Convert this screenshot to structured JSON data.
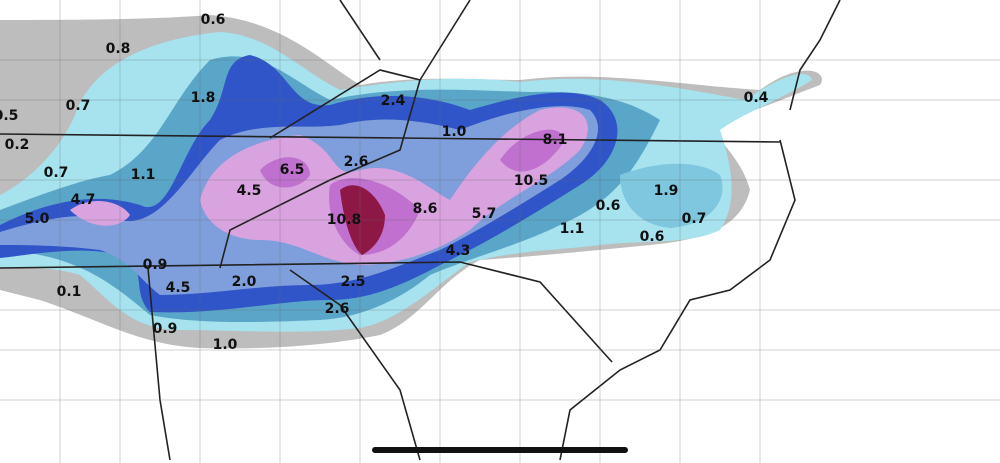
{
  "map": {
    "colors": {
      "trace_gray": "#b5b5b5",
      "dark_gray": "#8f8f8f",
      "light_cyan": "#a6e3ee",
      "teal_blue": "#5aa6c9",
      "light_blue": "#7f9fdc",
      "blue": "#2f55c8",
      "light_pink": "#d9a3df",
      "pink": "#c070cf",
      "magenta": "#a0409f",
      "maroon": "#8e1845",
      "borders": "#222222",
      "county_lines": "#555555"
    },
    "amount_labels": [
      "0.6",
      "0.8",
      "0.5",
      "0.7",
      "1.8",
      "2.4",
      "0.2",
      "1.0",
      "8.1",
      "0.7",
      "1.1",
      "6.5",
      "2.6",
      "4.5",
      "4.7",
      "5.0",
      "10.8",
      "8.6",
      "5.7",
      "10.5",
      "1.9",
      "0.6",
      "0.7",
      "1.1",
      "0.6",
      "0.9",
      "4.3",
      "0.1",
      "4.5",
      "2.0",
      "2.5",
      "2.6",
      "0.9",
      "1.0",
      "0.4"
    ]
  },
  "home_indicator": "home-indicator"
}
